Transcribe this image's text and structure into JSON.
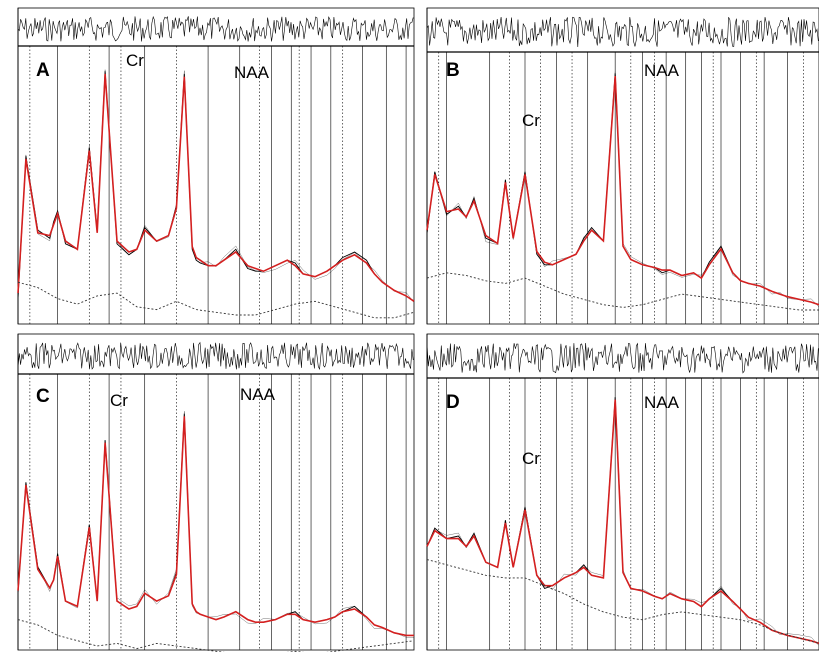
{
  "chart_data": [
    {
      "type": "line",
      "panel": "A",
      "peak_labels": [
        "Cr",
        "NAA"
      ],
      "grid": true,
      "series": [
        {
          "role": "spectrum",
          "color": "#000000",
          "x": [
            0,
            0.02,
            0.05,
            0.08,
            0.09,
            0.1,
            0.12,
            0.15,
            0.18,
            0.2,
            0.22,
            0.25,
            0.28,
            0.3,
            0.32,
            0.35,
            0.38,
            0.4,
            0.42,
            0.44,
            0.45,
            0.46,
            0.48,
            0.5,
            0.52,
            0.55,
            0.58,
            0.6,
            0.62,
            0.65,
            0.68,
            0.7,
            0.72,
            0.75,
            0.78,
            0.8,
            0.82,
            0.85,
            0.88,
            0.9,
            0.92,
            0.95,
            0.98,
            1.0
          ],
          "y": [
            0.1,
            0.62,
            0.35,
            0.32,
            0.38,
            0.42,
            0.3,
            0.28,
            0.65,
            0.35,
            0.93,
            0.3,
            0.26,
            0.28,
            0.36,
            0.31,
            0.33,
            0.44,
            0.92,
            0.28,
            0.24,
            0.23,
            0.22,
            0.22,
            0.24,
            0.28,
            0.21,
            0.2,
            0.2,
            0.22,
            0.24,
            0.23,
            0.19,
            0.18,
            0.2,
            0.22,
            0.25,
            0.27,
            0.24,
            0.19,
            0.16,
            0.13,
            0.11,
            0.09
          ]
        },
        {
          "role": "fit",
          "color": "#d42020",
          "x": [
            0,
            0.02,
            0.05,
            0.08,
            0.09,
            0.1,
            0.12,
            0.15,
            0.18,
            0.2,
            0.22,
            0.25,
            0.28,
            0.3,
            0.32,
            0.35,
            0.38,
            0.4,
            0.42,
            0.44,
            0.45,
            0.46,
            0.48,
            0.5,
            0.52,
            0.55,
            0.58,
            0.6,
            0.62,
            0.65,
            0.68,
            0.7,
            0.72,
            0.75,
            0.78,
            0.8,
            0.82,
            0.85,
            0.88,
            0.9,
            0.92,
            0.95,
            0.98,
            1.0
          ],
          "y": [
            0.12,
            0.61,
            0.34,
            0.33,
            0.37,
            0.41,
            0.31,
            0.28,
            0.64,
            0.34,
            0.92,
            0.31,
            0.27,
            0.28,
            0.35,
            0.31,
            0.33,
            0.43,
            0.91,
            0.29,
            0.25,
            0.24,
            0.22,
            0.22,
            0.24,
            0.27,
            0.22,
            0.21,
            0.2,
            0.22,
            0.24,
            0.22,
            0.19,
            0.18,
            0.2,
            0.22,
            0.24,
            0.26,
            0.23,
            0.19,
            0.16,
            0.13,
            0.11,
            0.09
          ]
        },
        {
          "role": "baseline",
          "color": "#333333",
          "x": [
            0,
            0.05,
            0.1,
            0.15,
            0.2,
            0.25,
            0.3,
            0.35,
            0.4,
            0.45,
            0.5,
            0.55,
            0.6,
            0.65,
            0.7,
            0.75,
            0.8,
            0.85,
            0.9,
            0.95,
            1.0
          ],
          "y": [
            0.16,
            0.14,
            0.1,
            0.08,
            0.11,
            0.12,
            0.07,
            0.06,
            0.09,
            0.06,
            0.05,
            0.04,
            0.04,
            0.06,
            0.08,
            0.09,
            0.07,
            0.05,
            0.03,
            0.03,
            0.05
          ]
        }
      ]
    },
    {
      "type": "line",
      "panel": "B",
      "peak_labels": [
        "Cr",
        "NAA"
      ],
      "grid": true,
      "series": [
        {
          "role": "spectrum",
          "color": "#000000",
          "x": [
            0,
            0.02,
            0.05,
            0.08,
            0.1,
            0.12,
            0.15,
            0.18,
            0.2,
            0.22,
            0.25,
            0.28,
            0.3,
            0.32,
            0.35,
            0.38,
            0.4,
            0.42,
            0.45,
            0.48,
            0.5,
            0.52,
            0.55,
            0.58,
            0.6,
            0.62,
            0.65,
            0.68,
            0.7,
            0.72,
            0.75,
            0.78,
            0.8,
            0.82,
            0.85,
            0.88,
            0.9,
            0.92,
            0.95,
            0.98,
            1.0
          ],
          "y": [
            0.35,
            0.58,
            0.42,
            0.45,
            0.41,
            0.48,
            0.33,
            0.31,
            0.55,
            0.33,
            0.58,
            0.27,
            0.23,
            0.23,
            0.25,
            0.27,
            0.33,
            0.37,
            0.32,
            0.95,
            0.3,
            0.25,
            0.23,
            0.22,
            0.2,
            0.21,
            0.19,
            0.2,
            0.18,
            0.24,
            0.3,
            0.2,
            0.17,
            0.16,
            0.15,
            0.13,
            0.12,
            0.11,
            0.1,
            0.09,
            0.08
          ]
        },
        {
          "role": "fit",
          "color": "#d42020",
          "x": [
            0,
            0.02,
            0.05,
            0.08,
            0.1,
            0.12,
            0.15,
            0.18,
            0.2,
            0.22,
            0.25,
            0.28,
            0.3,
            0.32,
            0.35,
            0.38,
            0.4,
            0.42,
            0.45,
            0.48,
            0.5,
            0.52,
            0.55,
            0.58,
            0.6,
            0.62,
            0.65,
            0.68,
            0.7,
            0.72,
            0.75,
            0.78,
            0.8,
            0.82,
            0.85,
            0.88,
            0.9,
            0.92,
            0.95,
            0.98,
            1.0
          ],
          "y": [
            0.36,
            0.57,
            0.43,
            0.44,
            0.41,
            0.47,
            0.34,
            0.31,
            0.54,
            0.33,
            0.57,
            0.28,
            0.24,
            0.23,
            0.25,
            0.27,
            0.32,
            0.36,
            0.32,
            0.94,
            0.3,
            0.25,
            0.23,
            0.22,
            0.21,
            0.21,
            0.19,
            0.2,
            0.18,
            0.23,
            0.29,
            0.2,
            0.17,
            0.16,
            0.15,
            0.13,
            0.12,
            0.11,
            0.1,
            0.09,
            0.08
          ]
        },
        {
          "role": "baseline",
          "color": "#333333",
          "x": [
            0,
            0.05,
            0.1,
            0.15,
            0.2,
            0.25,
            0.3,
            0.35,
            0.4,
            0.45,
            0.5,
            0.55,
            0.6,
            0.65,
            0.7,
            0.75,
            0.8,
            0.85,
            0.9,
            0.95,
            1.0
          ],
          "y": [
            0.18,
            0.2,
            0.19,
            0.17,
            0.16,
            0.18,
            0.15,
            0.12,
            0.1,
            0.08,
            0.07,
            0.08,
            0.1,
            0.12,
            0.11,
            0.1,
            0.09,
            0.08,
            0.07,
            0.06,
            0.06
          ]
        }
      ]
    },
    {
      "type": "line",
      "panel": "C",
      "peak_labels": [
        "Cr",
        "NAA"
      ],
      "grid": true,
      "series": [
        {
          "role": "spectrum",
          "color": "#000000",
          "x": [
            0,
            0.02,
            0.05,
            0.08,
            0.09,
            0.1,
            0.12,
            0.15,
            0.18,
            0.2,
            0.22,
            0.25,
            0.28,
            0.3,
            0.32,
            0.35,
            0.38,
            0.4,
            0.42,
            0.44,
            0.45,
            0.46,
            0.48,
            0.5,
            0.52,
            0.55,
            0.58,
            0.6,
            0.62,
            0.65,
            0.68,
            0.7,
            0.72,
            0.75,
            0.78,
            0.8,
            0.82,
            0.85,
            0.88,
            0.9,
            0.92,
            0.95,
            0.98,
            1.0
          ],
          "y": [
            0.2,
            0.62,
            0.3,
            0.22,
            0.25,
            0.35,
            0.17,
            0.15,
            0.46,
            0.17,
            0.78,
            0.17,
            0.14,
            0.15,
            0.2,
            0.17,
            0.19,
            0.28,
            0.88,
            0.16,
            0.13,
            0.12,
            0.11,
            0.1,
            0.11,
            0.13,
            0.1,
            0.09,
            0.09,
            0.1,
            0.12,
            0.13,
            0.1,
            0.09,
            0.1,
            0.11,
            0.13,
            0.15,
            0.11,
            0.08,
            0.07,
            0.05,
            0.04,
            0.04
          ]
        },
        {
          "role": "fit",
          "color": "#d42020",
          "x": [
            0,
            0.02,
            0.05,
            0.08,
            0.09,
            0.1,
            0.12,
            0.15,
            0.18,
            0.2,
            0.22,
            0.25,
            0.28,
            0.3,
            0.32,
            0.35,
            0.38,
            0.4,
            0.42,
            0.44,
            0.45,
            0.46,
            0.48,
            0.5,
            0.52,
            0.55,
            0.58,
            0.6,
            0.62,
            0.65,
            0.68,
            0.7,
            0.72,
            0.75,
            0.78,
            0.8,
            0.82,
            0.85,
            0.88,
            0.9,
            0.92,
            0.95,
            0.98,
            1.0
          ],
          "y": [
            0.21,
            0.61,
            0.29,
            0.22,
            0.25,
            0.34,
            0.17,
            0.15,
            0.45,
            0.17,
            0.77,
            0.17,
            0.14,
            0.15,
            0.2,
            0.17,
            0.19,
            0.27,
            0.87,
            0.16,
            0.13,
            0.12,
            0.11,
            0.1,
            0.11,
            0.13,
            0.1,
            0.09,
            0.09,
            0.1,
            0.12,
            0.12,
            0.1,
            0.09,
            0.1,
            0.11,
            0.13,
            0.14,
            0.11,
            0.08,
            0.07,
            0.05,
            0.04,
            0.04
          ]
        },
        {
          "role": "baseline",
          "color": "#333333",
          "x": [
            0,
            0.05,
            0.1,
            0.15,
            0.2,
            0.25,
            0.3,
            0.35,
            0.4,
            0.45,
            0.5,
            0.55,
            0.6,
            0.65,
            0.7,
            0.75,
            0.8,
            0.85,
            0.9,
            0.95,
            1.0
          ],
          "y": [
            0.1,
            0.08,
            0.04,
            0.02,
            0.0,
            0.01,
            -0.01,
            0.01,
            0.0,
            -0.01,
            -0.02,
            -0.03,
            -0.04,
            -0.03,
            -0.02,
            -0.03,
            -0.02,
            -0.01,
            0.0,
            0.01,
            0.02
          ]
        }
      ]
    },
    {
      "type": "line",
      "panel": "D",
      "peak_labels": [
        "Cr",
        "NAA"
      ],
      "grid": true,
      "series": [
        {
          "role": "spectrum",
          "color": "#000000",
          "x": [
            0,
            0.02,
            0.05,
            0.08,
            0.1,
            0.12,
            0.15,
            0.18,
            0.2,
            0.22,
            0.25,
            0.28,
            0.3,
            0.32,
            0.35,
            0.38,
            0.4,
            0.42,
            0.45,
            0.48,
            0.5,
            0.52,
            0.55,
            0.58,
            0.6,
            0.62,
            0.65,
            0.68,
            0.7,
            0.72,
            0.75,
            0.78,
            0.8,
            0.82,
            0.85,
            0.88,
            0.9,
            0.92,
            0.95,
            0.98,
            1.0
          ],
          "y": [
            0.38,
            0.45,
            0.41,
            0.42,
            0.38,
            0.43,
            0.32,
            0.3,
            0.48,
            0.3,
            0.53,
            0.27,
            0.22,
            0.23,
            0.26,
            0.28,
            0.31,
            0.27,
            0.26,
            0.95,
            0.28,
            0.22,
            0.21,
            0.19,
            0.18,
            0.2,
            0.18,
            0.17,
            0.15,
            0.18,
            0.22,
            0.17,
            0.14,
            0.11,
            0.09,
            0.06,
            0.05,
            0.04,
            0.03,
            0.02,
            0.01
          ]
        },
        {
          "role": "fit",
          "color": "#d42020",
          "x": [
            0,
            0.02,
            0.05,
            0.08,
            0.1,
            0.12,
            0.15,
            0.18,
            0.2,
            0.22,
            0.25,
            0.28,
            0.3,
            0.32,
            0.35,
            0.38,
            0.4,
            0.42,
            0.45,
            0.48,
            0.5,
            0.52,
            0.55,
            0.58,
            0.6,
            0.62,
            0.65,
            0.68,
            0.7,
            0.72,
            0.75,
            0.78,
            0.8,
            0.82,
            0.85,
            0.88,
            0.9,
            0.92,
            0.95,
            0.98,
            1.0
          ],
          "y": [
            0.38,
            0.44,
            0.41,
            0.41,
            0.38,
            0.42,
            0.32,
            0.3,
            0.47,
            0.3,
            0.52,
            0.27,
            0.23,
            0.23,
            0.26,
            0.28,
            0.3,
            0.27,
            0.26,
            0.94,
            0.28,
            0.22,
            0.21,
            0.19,
            0.18,
            0.2,
            0.18,
            0.17,
            0.15,
            0.18,
            0.21,
            0.17,
            0.14,
            0.11,
            0.09,
            0.06,
            0.05,
            0.04,
            0.03,
            0.02,
            0.01
          ]
        },
        {
          "role": "baseline",
          "color": "#333333",
          "x": [
            0,
            0.05,
            0.1,
            0.15,
            0.2,
            0.25,
            0.3,
            0.35,
            0.4,
            0.45,
            0.5,
            0.55,
            0.6,
            0.65,
            0.7,
            0.75,
            0.8,
            0.85,
            0.9,
            0.95,
            1.0
          ],
          "y": [
            0.33,
            0.31,
            0.29,
            0.27,
            0.26,
            0.26,
            0.23,
            0.2,
            0.16,
            0.13,
            0.11,
            0.1,
            0.12,
            0.13,
            0.12,
            0.11,
            0.1,
            0.08,
            0.05,
            0.03,
            0.01
          ]
        }
      ]
    }
  ]
}
